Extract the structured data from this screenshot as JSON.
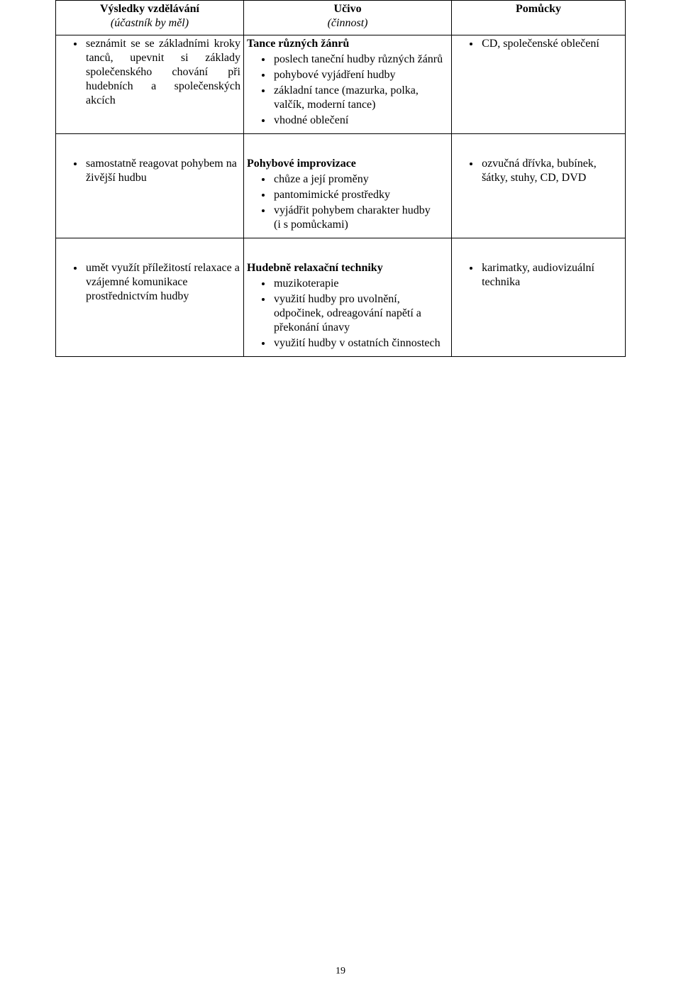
{
  "header": {
    "col1_title": "Výsledky vzdělávání",
    "col1_sub": "(účastník by měl)",
    "col2_title": "Učivo",
    "col2_sub": "(činnost)",
    "col3_title": "Pomůcky"
  },
  "rows": [
    {
      "outcomes": [
        "seznámit se se základními kroky tanců, upevnit si základy společenského chování při hudebních a společenských akcích"
      ],
      "outcomes_justify": true,
      "content_title": "Tance různých žánrů",
      "content_items": [
        "poslech taneční hudby různých žánrů",
        "pohybové vyjádření hudby",
        "základní tance (mazurka, polka, valčík, moderní tance)",
        "vhodné oblečení"
      ],
      "aids": [
        "CD, společenské oblečení"
      ]
    },
    {
      "outcomes": [
        "samostatně reagovat pohybem na živější hudbu"
      ],
      "outcomes_justify": false,
      "content_title": "Pohybové improvizace",
      "content_items": [
        "chůze a její proměny",
        "pantomimické prostředky",
        "vyjádřit pohybem charakter hudby\n(i s pomůckami)"
      ],
      "aids": [
        "ozvučná dřívka, bubínek, šátky, stuhy, CD, DVD"
      ],
      "top_gap": true
    },
    {
      "outcomes": [
        "umět využít příležitostí relaxace a vzájemné komunikace prostřednictvím hudby"
      ],
      "outcomes_justify": false,
      "content_title": "Hudebně relaxační techniky",
      "content_items": [
        "muzikoterapie",
        "využití hudby pro uvolnění, odpočinek, odreagování napětí a překonání únavy",
        "využití hudby v ostatních činnostech"
      ],
      "aids": [
        "karimatky, audiovizuální technika"
      ],
      "top_gap": true
    }
  ],
  "page_number": "19"
}
